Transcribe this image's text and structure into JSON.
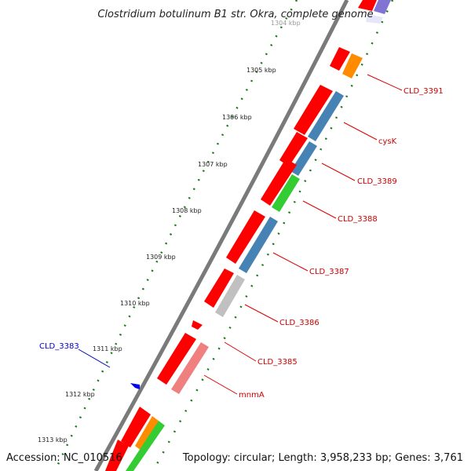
{
  "title": "Clostridium botulinum B1 str. Okra, complete genome",
  "accession_label": "Accession: NC_010516",
  "topology_label": "Topology: circular; Length: 3,958,233 bp; Genes: 3,761",
  "colors": {
    "backbone": "#808080",
    "ticks": "#1a7a1a",
    "cds_forward": "#ff0000",
    "blue_track": "#4682b4",
    "green_track": "#33cc33",
    "orange_track": "#ff8c00",
    "gray_track": "#c0c0c0",
    "pink_track": "#f08080",
    "label_red": "#cc0000",
    "label_blue": "#0000cc"
  },
  "tick_labels": [
    "1304 kbp",
    "1305 kbp",
    "1306 kbp",
    "1307 kbp",
    "1308 kbp",
    "1309 kbp",
    "1310 kbp",
    "1311 kbp",
    "1312 kbp",
    "1313 kbp"
  ],
  "genes": [
    {
      "name": "CLD_3391",
      "color": "red"
    },
    {
      "name": "cysK",
      "color": "red"
    },
    {
      "name": "CLD_3389",
      "color": "red"
    },
    {
      "name": "CLD_3388",
      "color": "red"
    },
    {
      "name": "CLD_3387",
      "color": "red"
    },
    {
      "name": "CLD_3386",
      "color": "red"
    },
    {
      "name": "CLD_3385",
      "color": "red"
    },
    {
      "name": "mnmA",
      "color": "red"
    },
    {
      "name": "CLD_3383",
      "color": "blue"
    }
  ]
}
